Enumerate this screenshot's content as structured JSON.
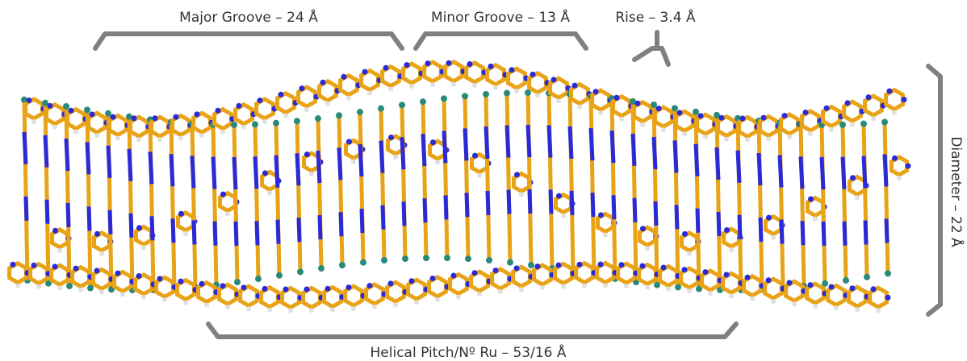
{
  "annotations": {
    "major_groove": "Major Groove – 24 Å",
    "minor_groove": "Minor Groove – 13 Å",
    "rise": "Rise – 3.4 Å",
    "diameter": "Diameter – 22 Å",
    "helical_pitch": "Helical Pitch/Nº Ru – 53/16 Å"
  }
}
